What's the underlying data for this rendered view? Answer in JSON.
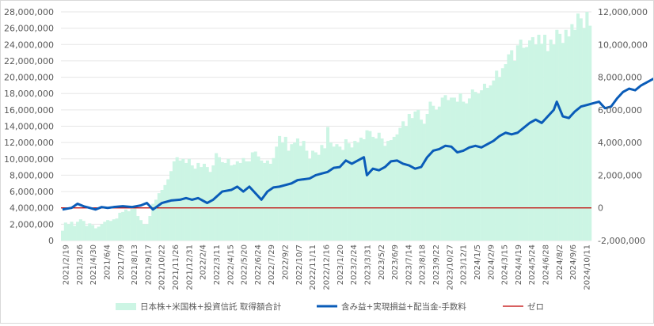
{
  "chart_data": {
    "type": "bar+line",
    "title": "",
    "x_tick_labels": [
      "2021/2/19",
      "2021/3/26",
      "2021/4/30",
      "2021/6/4",
      "2021/7/9",
      "2021/8/13",
      "2021/9/17",
      "2021/10/22",
      "2021/11/26",
      "2021/12/31",
      "2022/2/4",
      "2022/3/11",
      "2022/4/15",
      "2022/5/20",
      "2022/6/24",
      "2022/7/29",
      "2022/9/2",
      "2022/10/7",
      "2022/11/11",
      "2022/12/16",
      "2023/1/20",
      "2023/2/24",
      "2023/3/31",
      "2023/5/2",
      "2023/6/9",
      "2023/7/14",
      "2023/8/18",
      "2023/9/22",
      "2023/10/27",
      "2023/12/1",
      "2024/1/5",
      "2024/2/9",
      "2024/3/15",
      "2024/4/19",
      "2024/5/24",
      "2024/6/28",
      "2024/8/2",
      "2024/9/6",
      "2024/10/11"
    ],
    "y_left": {
      "ylim": [
        0,
        28000000
      ],
      "ticks": [
        "0",
        "2,000,000",
        "4,000,000",
        "6,000,000",
        "8,000,000",
        "10,000,000",
        "12,000,000",
        "14,000,000",
        "16,000,000",
        "18,000,000",
        "20,000,000",
        "22,000,000",
        "24,000,000",
        "26,000,000",
        "28,000,000"
      ]
    },
    "y_right": {
      "ylim": [
        -2000000,
        12000000
      ],
      "ticks": [
        "-2,000,000",
        "0",
        "2,000,000",
        "4,000,000",
        "6,000,000",
        "8,000,000",
        "10,000,000",
        "12,000,000"
      ]
    },
    "legend_position": "bottom",
    "grid": true,
    "series": [
      {
        "name": "日本株+米国株+投資信託 取得額合計",
        "kind": "bar",
        "axis": "left",
        "color": "#ccf5e4",
        "values": [
          1200000,
          2200000,
          2000000,
          2300000,
          1800000,
          2300000,
          2600000,
          2400000,
          1800000,
          2100000,
          1900000,
          1500000,
          1700000,
          2000000,
          2300000,
          2500000,
          2400000,
          2600000,
          2700000,
          3400000,
          3500000,
          3800000,
          3600000,
          3900000,
          4200000,
          3000000,
          2500000,
          2000000,
          2000000,
          3000000,
          4500000,
          5000000,
          5800000,
          6200000,
          6800000,
          7500000,
          8500000,
          9700000,
          10200000,
          9800000,
          10000000,
          9500000,
          10000000,
          9200000,
          8800000,
          9500000,
          9000000,
          9400000,
          9000000,
          8400000,
          9200000,
          10700000,
          10200000,
          9600000,
          9500000,
          10000000,
          9200000,
          9300000,
          9700000,
          9500000,
          10100000,
          9700000,
          9700000,
          10800000,
          10900000,
          10300000,
          9800000,
          9500000,
          9800000,
          9400000,
          10100000,
          11500000,
          12800000,
          12000000,
          12700000,
          11000000,
          11800000,
          12000000,
          12500000,
          11600000,
          12200000,
          11000000,
          10000000,
          11000000,
          10800000,
          10500000,
          11700000,
          11300000,
          13900000,
          12000000,
          11500000,
          11800000,
          11500000,
          11100000,
          12400000,
          11900000,
          11400000,
          12200000,
          12000000,
          12600000,
          12400000,
          13500000,
          13400000,
          12700000,
          12500000,
          13200000,
          12500000,
          11600000,
          12200000,
          12300000,
          12700000,
          13000000,
          13800000,
          14600000,
          14000000,
          15500000,
          15000000,
          15800000,
          16000000,
          14800000,
          14300000,
          15500000,
          17000000,
          16500000,
          16000000,
          16400000,
          17500000,
          17800000,
          17200000,
          17500000,
          17500000,
          17000000,
          18000000,
          17000000,
          16800000,
          17400000,
          18500000,
          18200000,
          18000000,
          18400000,
          19200000,
          18700000,
          19000000,
          19600000,
          20800000,
          20000000,
          21100000,
          21600000,
          22800000,
          23300000,
          22000000,
          23900000,
          24600000,
          23600000,
          23700000,
          24500000,
          24900000,
          24000000,
          25200000,
          24100000,
          25200000,
          23200000,
          24600000,
          24000000,
          25800000,
          25300000,
          24200000,
          25800000,
          25000000,
          26500000,
          25800000,
          27800000,
          27200000,
          26000000,
          28000000,
          26300000
        ]
      },
      {
        "name": "含み益+実現損益+配当金-手数料",
        "kind": "line",
        "axis": "right",
        "color": "#0a5cb8",
        "points": [
          [
            0,
            -100000
          ],
          [
            3,
            0
          ],
          [
            5,
            250000
          ],
          [
            7,
            100000
          ],
          [
            9,
            0
          ],
          [
            11,
            -100000
          ],
          [
            13,
            50000
          ],
          [
            15,
            0
          ],
          [
            17,
            50000
          ],
          [
            20,
            100000
          ],
          [
            23,
            50000
          ],
          [
            26,
            150000
          ],
          [
            28,
            300000
          ],
          [
            30,
            -100000
          ],
          [
            33,
            300000
          ],
          [
            36,
            450000
          ],
          [
            39,
            500000
          ],
          [
            41,
            600000
          ],
          [
            43,
            500000
          ],
          [
            45,
            600000
          ],
          [
            48,
            300000
          ],
          [
            50,
            500000
          ],
          [
            53,
            1000000
          ],
          [
            56,
            1100000
          ],
          [
            58,
            1300000
          ],
          [
            60,
            1000000
          ],
          [
            62,
            1300000
          ],
          [
            64,
            900000
          ],
          [
            66,
            500000
          ],
          [
            68,
            1000000
          ],
          [
            70,
            1250000
          ],
          [
            72,
            1300000
          ],
          [
            74,
            1400000
          ],
          [
            76,
            1500000
          ],
          [
            78,
            1700000
          ],
          [
            80,
            1750000
          ],
          [
            82,
            1800000
          ],
          [
            84,
            2000000
          ],
          [
            86,
            2100000
          ],
          [
            88,
            2200000
          ],
          [
            90,
            2450000
          ],
          [
            92,
            2500000
          ],
          [
            94,
            2900000
          ],
          [
            96,
            2700000
          ],
          [
            98,
            2900000
          ],
          [
            100,
            3100000
          ],
          [
            101,
            2000000
          ],
          [
            103,
            2400000
          ],
          [
            105,
            2300000
          ],
          [
            107,
            2500000
          ],
          [
            109,
            2850000
          ],
          [
            111,
            2900000
          ],
          [
            113,
            2700000
          ],
          [
            115,
            2600000
          ],
          [
            117,
            2400000
          ],
          [
            119,
            2500000
          ],
          [
            121,
            3100000
          ],
          [
            123,
            3500000
          ],
          [
            125,
            3600000
          ],
          [
            127,
            3800000
          ],
          [
            129,
            3750000
          ],
          [
            131,
            3400000
          ],
          [
            133,
            3500000
          ],
          [
            135,
            3700000
          ],
          [
            137,
            3800000
          ],
          [
            139,
            3700000
          ],
          [
            141,
            3900000
          ],
          [
            143,
            4100000
          ],
          [
            145,
            4400000
          ],
          [
            147,
            4600000
          ],
          [
            149,
            4500000
          ],
          [
            151,
            4600000
          ],
          [
            153,
            4900000
          ],
          [
            155,
            5200000
          ],
          [
            157,
            5400000
          ],
          [
            159,
            5200000
          ],
          [
            161,
            5600000
          ],
          [
            163,
            6000000
          ],
          [
            164,
            6500000
          ],
          [
            166,
            5600000
          ],
          [
            168,
            5500000
          ],
          [
            170,
            5900000
          ],
          [
            172,
            6200000
          ],
          [
            174,
            6300000
          ],
          [
            176,
            6400000
          ],
          [
            178,
            6500000
          ],
          [
            180,
            6100000
          ],
          [
            182,
            6200000
          ],
          [
            184,
            6700000
          ],
          [
            186,
            7100000
          ],
          [
            188,
            7300000
          ],
          [
            190,
            7200000
          ],
          [
            192,
            7500000
          ],
          [
            194,
            7700000
          ],
          [
            196,
            7900000
          ],
          [
            198,
            7800000
          ],
          [
            200,
            8000000
          ],
          [
            202,
            8500000
          ],
          [
            204,
            8300000
          ],
          [
            206,
            8400000
          ],
          [
            208,
            7600000
          ],
          [
            210,
            8000000
          ],
          [
            212,
            8300000
          ],
          [
            214,
            8200000
          ],
          [
            216,
            8500000
          ],
          [
            218,
            8450000
          ],
          [
            220,
            8600000
          ],
          [
            222,
            9200000
          ],
          [
            224,
            9100000
          ],
          [
            226,
            8400000
          ],
          [
            228,
            6900000
          ],
          [
            230,
            8400000
          ],
          [
            232,
            8200000
          ],
          [
            234,
            7400000
          ],
          [
            236,
            8200000
          ],
          [
            238,
            8600000
          ],
          [
            240,
            8800000
          ],
          [
            242,
            8500000
          ],
          [
            243,
            8700000
          ]
        ]
      },
      {
        "name": "ゼロ",
        "kind": "line",
        "axis": "right",
        "color": "#c00000",
        "value": 0
      }
    ]
  }
}
